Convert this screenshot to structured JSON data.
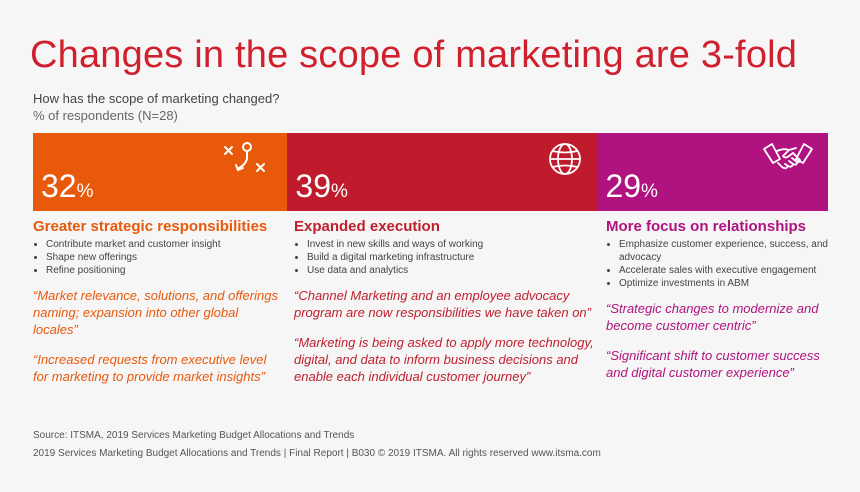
{
  "title": "Changes in the scope of marketing are 3-fold",
  "question": "How has the scope of marketing changed?",
  "respondents": "% of respondents (N=28)",
  "chart_data": {
    "type": "bar",
    "categories": [
      "Greater strategic responsibilities",
      "Expanded execution",
      "More focus on relationships"
    ],
    "values": [
      32,
      39,
      29
    ],
    "value_suffix": "%",
    "colors": [
      "#e8590c",
      "#bf1b2c",
      "#b0137f"
    ]
  },
  "segments": [
    {
      "value": "32",
      "symbol": "%",
      "color": "#e8590c",
      "heading_color": "#e8590c",
      "icon": "strategy-play-icon",
      "heading": "Greater strategic responsibilities",
      "bullets": [
        "Contribute market and customer insight",
        "Shape new offerings",
        "Refine positioning"
      ],
      "quotes": [
        "“Market relevance, solutions, and offerings naming; expansion into other global locales”",
        "“Increased requests from executive level for marketing to provide market insights”"
      ]
    },
    {
      "value": "39",
      "symbol": "%",
      "color": "#bf1b2c",
      "heading_color": "#c0202e",
      "icon": "globe-icon",
      "heading": "Expanded execution",
      "bullets": [
        "Invest in new skills and ways of working",
        "Build a digital marketing infrastructure",
        "Use data and analytics"
      ],
      "quotes": [
        "“Channel Marketing and an employee advocacy program are now responsibilities we have taken on”",
        "“Marketing is being asked to apply more technology, digital, and data to inform business decisions and enable each individual customer journey”"
      ]
    },
    {
      "value": "29",
      "symbol": "%",
      "color": "#b0137f",
      "heading_color": "#b0137f",
      "icon": "handshake-icon",
      "heading": "More focus on relationships",
      "bullets": [
        "Emphasize customer experience, success, and advocacy",
        "Accelerate sales with executive engagement",
        "Optimize investments in ABM"
      ],
      "quotes": [
        "“Strategic changes to modernize and become customer centric”",
        "“Significant shift to customer success and digital customer experience”"
      ]
    }
  ],
  "source": "Source: ITSMA, 2019 Services Marketing Budget Allocations and Trends",
  "footer": "2019 Services Marketing Budget Allocations and Trends | Final Report | B030 © 2019 ITSMA. All rights reserved www.itsma.com"
}
